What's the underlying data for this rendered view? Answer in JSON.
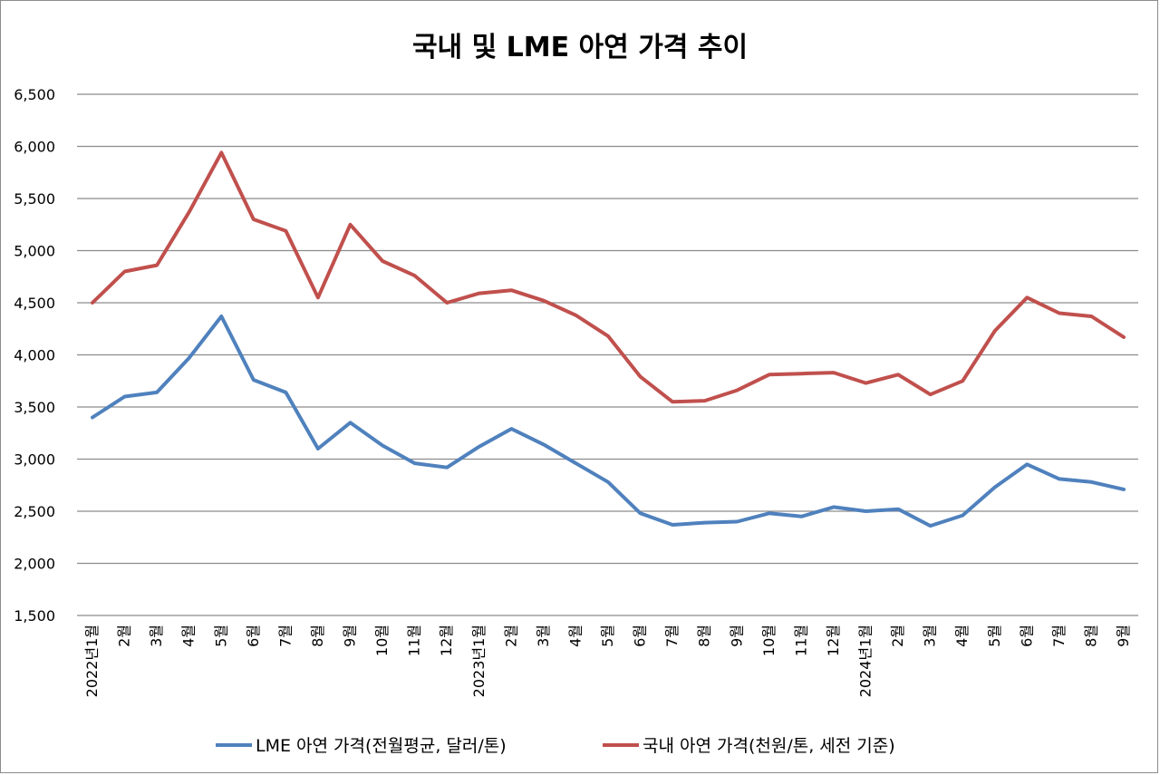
{
  "chart_data": {
    "type": "line",
    "title": "국내 및 LME 아연 가격 추이",
    "xlabel": "",
    "ylabel": "",
    "ylim": [
      1500,
      6500
    ],
    "yticks": [
      "1,500",
      "2,000",
      "2,500",
      "3,000",
      "3,500",
      "4,000",
      "4,500",
      "5,000",
      "5,500",
      "6,000",
      "6,500"
    ],
    "categories": [
      "2022년1월",
      "2월",
      "3월",
      "4월",
      "5월",
      "6월",
      "7월",
      "8월",
      "9월",
      "10월",
      "11월",
      "12월",
      "2023년1월",
      "2월",
      "3월",
      "4월",
      "5월",
      "6월",
      "7월",
      "8월",
      "9월",
      "10월",
      "11월",
      "12월",
      "2024년1월",
      "2월",
      "3월",
      "4월",
      "5월",
      "6월",
      "7월",
      "8월",
      "9월"
    ],
    "grid": true,
    "legend_position": "bottom",
    "series": [
      {
        "name": "LME 아연 가격(전월평균, 달러/톤)",
        "color": "#4f81bd",
        "values": [
          3400,
          3600,
          3640,
          3970,
          4370,
          3760,
          3640,
          3100,
          3350,
          3130,
          2960,
          2920,
          3120,
          3290,
          3140,
          2960,
          2780,
          2480,
          2370,
          2390,
          2400,
          2480,
          2450,
          2540,
          2500,
          2520,
          2360,
          2460,
          2730,
          2950,
          2810,
          2780,
          2710
        ]
      },
      {
        "name": "국내 아연 가격(천원/톤, 세전 기준)",
        "color": "#c0504d",
        "values": [
          4500,
          4800,
          4860,
          5370,
          5940,
          5300,
          5190,
          4550,
          5250,
          4900,
          4760,
          4500,
          4590,
          4620,
          4520,
          4380,
          4180,
          3790,
          3550,
          3560,
          3660,
          3810,
          3820,
          3830,
          3730,
          3810,
          3620,
          3750,
          4230,
          4550,
          4400,
          4370,
          4170
        ]
      }
    ]
  }
}
